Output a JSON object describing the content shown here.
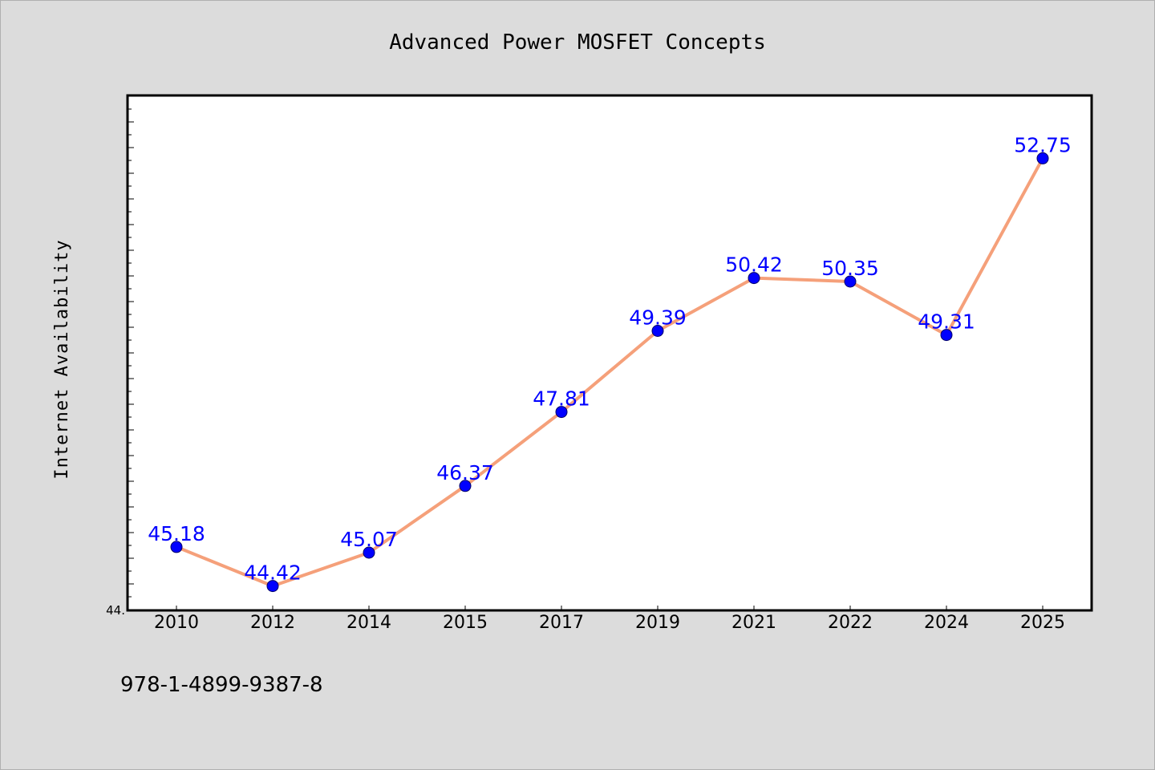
{
  "chart_data": {
    "type": "line",
    "title": "Advanced Power MOSFET Concepts",
    "xlabel": "",
    "ylabel": "Internet Availability",
    "categories": [
      "2010",
      "2012",
      "2014",
      "2015",
      "2017",
      "2019",
      "2021",
      "2022",
      "2024",
      "2025"
    ],
    "values": [
      45.18,
      44.42,
      45.07,
      46.37,
      47.81,
      49.39,
      50.42,
      50.35,
      49.31,
      52.75
    ],
    "data_labels": [
      "45.18",
      "44.42",
      "45.07",
      "46.37",
      "47.81",
      "49.39",
      "50.42",
      "50.35",
      "49.31",
      "52.75"
    ],
    "y_tick_label": "44.",
    "ylim": [
      43.96,
      53.96
    ],
    "grid": false,
    "legend": "none",
    "colors": {
      "line": "#f5a07a",
      "marker": "#0000ff",
      "label": "#0000ff",
      "background": "#dcdcdc",
      "plot_background": "#ffffff"
    }
  },
  "footer": {
    "isbn": "978-1-4899-9387-8"
  }
}
